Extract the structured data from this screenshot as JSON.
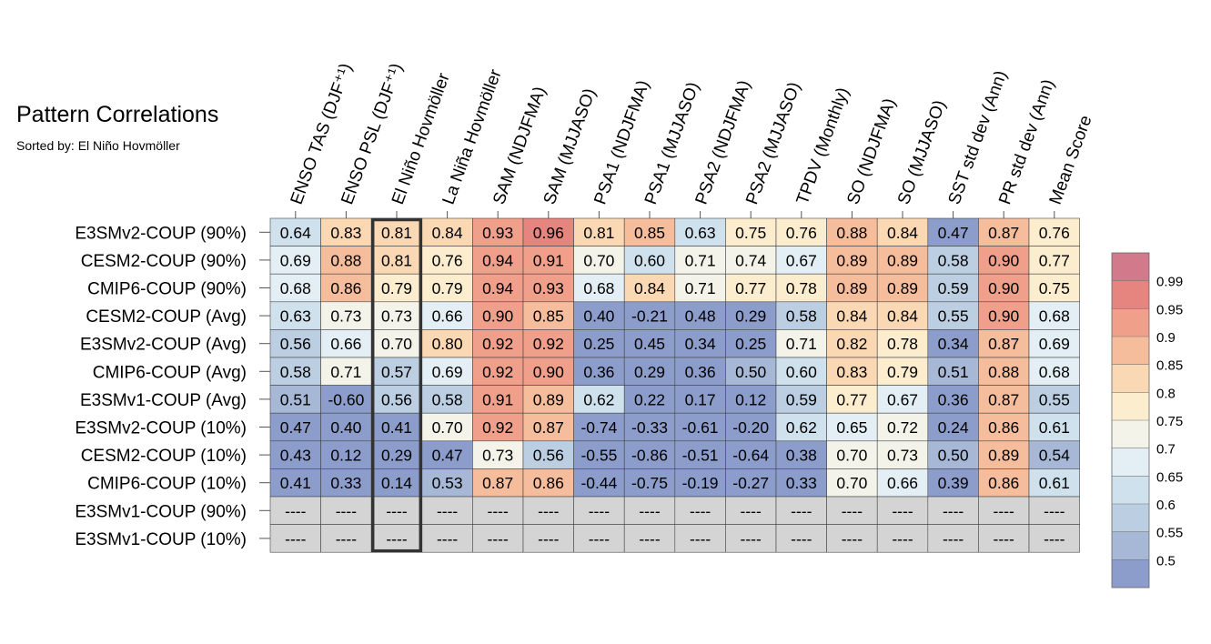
{
  "title": "Pattern Correlations",
  "subtitle": "Sorted by: El Niño Hovmöller",
  "colors": {
    "scale": [
      "#8c9dcb",
      "#a6b8d6",
      "#bccfe2",
      "#cfe1ec",
      "#e3eff4",
      "#f3f3ea",
      "#fcedcf",
      "#fbd8b4",
      "#f6bd9c",
      "#ef9f8a",
      "#e6847f",
      "#d27a8c"
    ],
    "missing": "#d4d4d4",
    "highlight_border": "#333333"
  },
  "chart_data": {
    "type": "heatmap",
    "title": "Pattern Correlations",
    "subtitle": "Sorted by: El Niño Hovmöller",
    "highlight_column": "El Niño Hovmöller",
    "columns": [
      "ENSO TAS (DJF⁺¹)",
      "ENSO PSL (DJF⁺¹)",
      "El Niño Hovmöller",
      "La Niña Hovmöller",
      "SAM (NDJFMA)",
      "SAM (MJJASO)",
      "PSA1 (NDJFMA)",
      "PSA1 (MJJASO)",
      "PSA2 (NDJFMA)",
      "PSA2 (MJJASO)",
      "TPDV (Monthly)",
      "SO (NDJFMA)",
      "SO (MJJASO)",
      "SST std dev (Ann)",
      "PR std dev (Ann)",
      "Mean Score"
    ],
    "rows": [
      "E3SMv2-COUP (90%)",
      "CESM2-COUP (90%)",
      "CMIP6-COUP (90%)",
      "CESM2-COUP (Avg)",
      "E3SMv2-COUP (Avg)",
      "CMIP6-COUP (Avg)",
      "E3SMv1-COUP (Avg)",
      "E3SMv2-COUP (10%)",
      "CESM2-COUP (10%)",
      "CMIP6-COUP (10%)",
      "E3SMv1-COUP (90%)",
      "E3SMv1-COUP (10%)"
    ],
    "values": [
      [
        0.64,
        0.83,
        0.81,
        0.84,
        0.93,
        0.96,
        0.81,
        0.85,
        0.63,
        0.75,
        0.76,
        0.88,
        0.84,
        0.47,
        0.87,
        0.76
      ],
      [
        0.69,
        0.88,
        0.81,
        0.76,
        0.94,
        0.91,
        0.7,
        0.6,
        0.71,
        0.74,
        0.67,
        0.89,
        0.89,
        0.58,
        0.9,
        0.77
      ],
      [
        0.68,
        0.86,
        0.79,
        0.79,
        0.94,
        0.93,
        0.68,
        0.84,
        0.71,
        0.77,
        0.78,
        0.89,
        0.89,
        0.59,
        0.9,
        0.75
      ],
      [
        0.63,
        0.73,
        0.73,
        0.66,
        0.9,
        0.85,
        0.4,
        -0.21,
        0.48,
        0.29,
        0.58,
        0.84,
        0.84,
        0.55,
        0.9,
        0.68
      ],
      [
        0.56,
        0.66,
        0.7,
        0.8,
        0.92,
        0.92,
        0.25,
        0.45,
        0.34,
        0.25,
        0.71,
        0.82,
        0.78,
        0.34,
        0.87,
        0.69
      ],
      [
        0.58,
        0.71,
        0.57,
        0.69,
        0.92,
        0.9,
        0.36,
        0.29,
        0.36,
        0.5,
        0.6,
        0.83,
        0.79,
        0.51,
        0.88,
        0.68
      ],
      [
        0.51,
        -0.6,
        0.56,
        0.58,
        0.91,
        0.89,
        0.62,
        0.22,
        0.17,
        0.12,
        0.59,
        0.77,
        0.67,
        0.36,
        0.87,
        0.55
      ],
      [
        0.47,
        0.4,
        0.41,
        0.7,
        0.92,
        0.87,
        -0.74,
        -0.33,
        -0.61,
        -0.2,
        0.62,
        0.65,
        0.72,
        0.24,
        0.86,
        0.61
      ],
      [
        0.43,
        0.12,
        0.29,
        0.47,
        0.73,
        0.56,
        -0.55,
        -0.86,
        -0.51,
        -0.64,
        0.38,
        0.7,
        0.73,
        0.5,
        0.89,
        0.54
      ],
      [
        0.41,
        0.33,
        0.14,
        0.53,
        0.87,
        0.86,
        -0.44,
        -0.75,
        -0.19,
        -0.27,
        0.33,
        0.7,
        0.66,
        0.39,
        0.86,
        0.61
      ],
      [
        null,
        null,
        null,
        null,
        null,
        null,
        null,
        null,
        null,
        null,
        null,
        null,
        null,
        null,
        null,
        null
      ],
      [
        null,
        null,
        null,
        null,
        null,
        null,
        null,
        null,
        null,
        null,
        null,
        null,
        null,
        null,
        null,
        null
      ]
    ],
    "missing_label": "----",
    "value_format": "2 decimals",
    "colorbar": {
      "levels": [
        0.5,
        0.55,
        0.6,
        0.65,
        0.7,
        0.75,
        0.8,
        0.85,
        0.9,
        0.95,
        0.99
      ],
      "labels": [
        "0.5",
        "0.55",
        "0.6",
        "0.65",
        "0.7",
        "0.75",
        "0.8",
        "0.85",
        "0.9",
        "0.95",
        "0.99"
      ],
      "placement": "right"
    }
  }
}
